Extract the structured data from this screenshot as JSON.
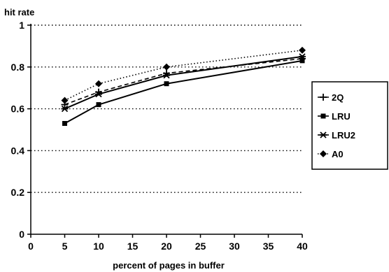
{
  "chart_data": {
    "type": "line",
    "ylabel": "hit rate",
    "xlabel": "percent of pages in buffer",
    "x": [
      5,
      10,
      20,
      40
    ],
    "xlim": [
      0,
      40
    ],
    "ylim": [
      0,
      1
    ],
    "xticks": [
      "0",
      "5",
      "10",
      "15",
      "20",
      "25",
      "30",
      "35",
      "40"
    ],
    "yticks": [
      "0",
      "0.2",
      "0.4",
      "0.6",
      "0.8",
      "1"
    ],
    "grid": "horizontal dotted",
    "legend_position": "right",
    "series": [
      {
        "name": "2Q",
        "values": [
          0.62,
          0.68,
          0.77,
          0.84
        ],
        "marker": "plus",
        "line": "dashed"
      },
      {
        "name": "LRU",
        "values": [
          0.53,
          0.62,
          0.72,
          0.83
        ],
        "marker": "square",
        "line": "solid"
      },
      {
        "name": "LRU2",
        "values": [
          0.6,
          0.67,
          0.76,
          0.85
        ],
        "marker": "star",
        "line": "solid"
      },
      {
        "name": "A0",
        "values": [
          0.64,
          0.72,
          0.8,
          0.88
        ],
        "marker": "diamond",
        "line": "dotted"
      }
    ]
  }
}
